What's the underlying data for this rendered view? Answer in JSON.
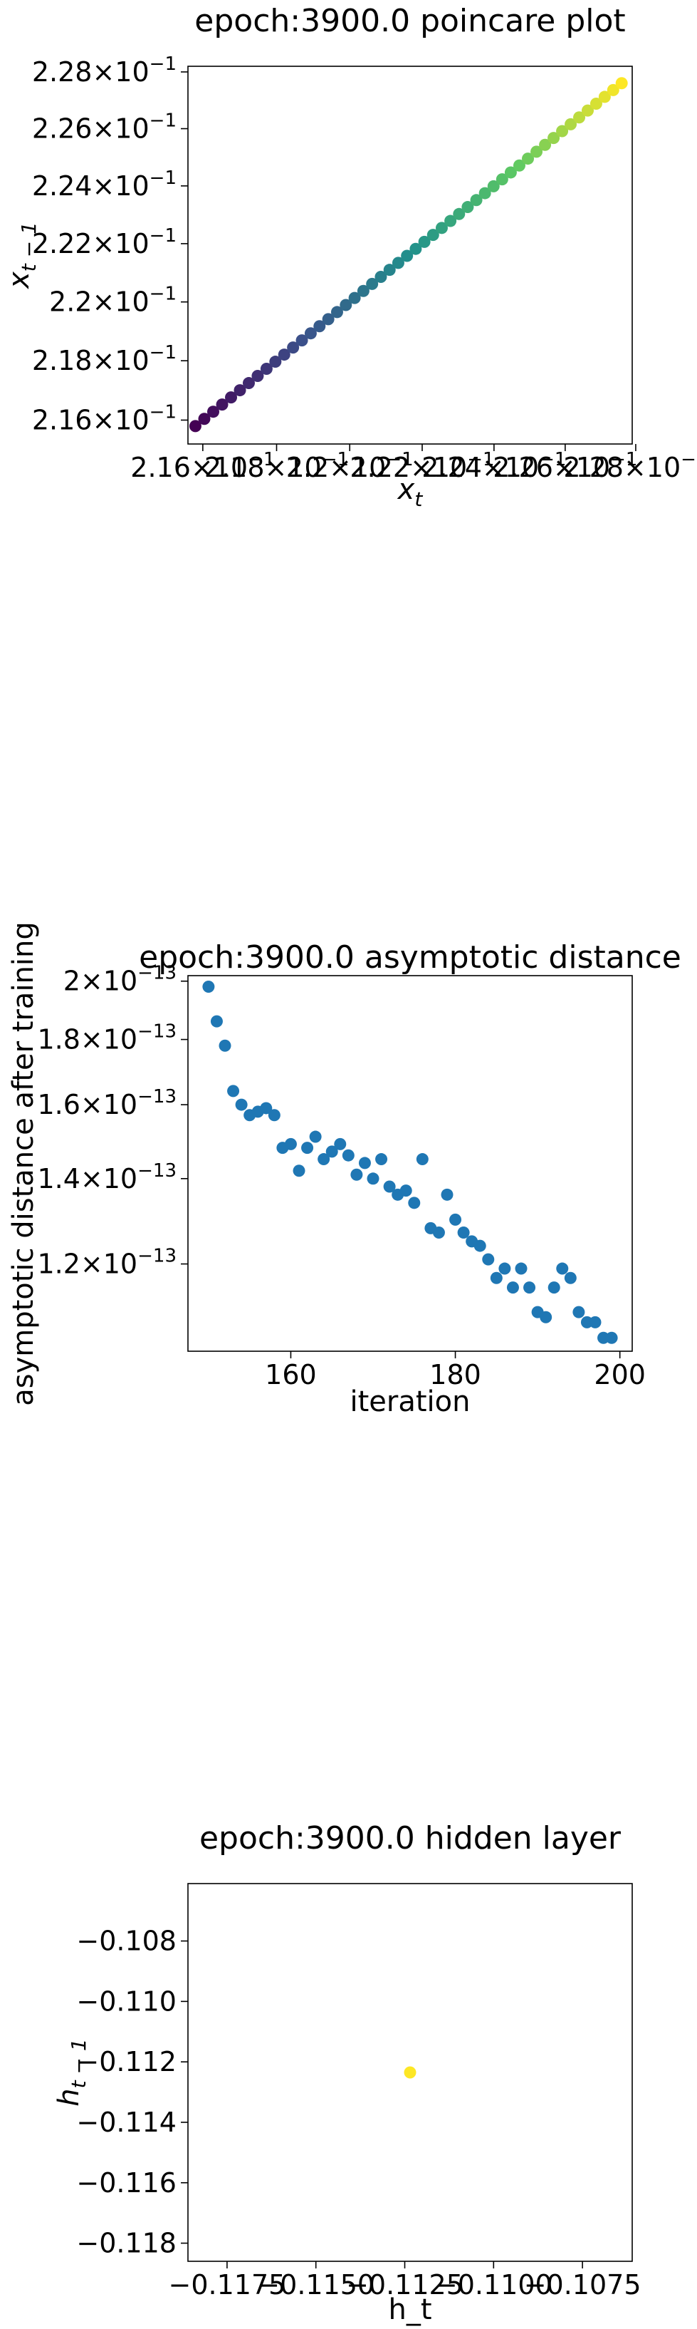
{
  "chart_data": [
    {
      "type": "scatter",
      "title": "epoch:3900.0 poincare plot",
      "xlabel": "x_t",
      "ylabel": "x_{t-1}",
      "xscale": "log",
      "yscale": "log",
      "xlim": [
        0.2156,
        0.2279
      ],
      "ylim": [
        0.2152,
        0.2282
      ],
      "grid": false,
      "legend": "none",
      "colormap": "viridis",
      "xticks": [
        {
          "value": 0.216,
          "base": "2.16",
          "exp": "−1"
        },
        {
          "value": 0.218,
          "base": "2.18",
          "exp": "−1"
        },
        {
          "value": 0.22,
          "base": "2.2",
          "exp": "−1"
        },
        {
          "value": 0.222,
          "base": "2.22",
          "exp": "−1"
        },
        {
          "value": 0.224,
          "base": "2.24",
          "exp": "−1"
        },
        {
          "value": 0.226,
          "base": "2.26",
          "exp": "−1"
        },
        {
          "value": 0.228,
          "base": "2.28",
          "exp": "−1"
        }
      ],
      "yticks": [
        {
          "value": 0.216,
          "base": "2.16",
          "exp": "−1"
        },
        {
          "value": 0.218,
          "base": "2.18",
          "exp": "−1"
        },
        {
          "value": 0.22,
          "base": "2.2",
          "exp": "−1"
        },
        {
          "value": 0.222,
          "base": "2.22",
          "exp": "−1"
        },
        {
          "value": 0.224,
          "base": "2.24",
          "exp": "−1"
        },
        {
          "value": 0.226,
          "base": "2.26",
          "exp": "−1"
        },
        {
          "value": 0.228,
          "base": "2.28",
          "exp": "−1"
        }
      ],
      "x_start": 0.2158,
      "x_end": 0.2276,
      "n_points": 50
    },
    {
      "type": "scatter",
      "title": "epoch:3900.0 asymptotic distance",
      "xlabel": "iteration",
      "ylabel": "asymptotic distance after training",
      "yscale": "log",
      "xlim": [
        147.5,
        201.5
      ],
      "ylim": [
        1.025e-13,
        2.02e-13
      ],
      "grid": false,
      "legend": "none",
      "color": "#1f77b4",
      "xticks": [
        {
          "value": 160,
          "label": "160"
        },
        {
          "value": 180,
          "label": "180"
        },
        {
          "value": 200,
          "label": "200"
        }
      ],
      "yticks": [
        {
          "value": 2e-13,
          "base": "2",
          "exp": "−13"
        },
        {
          "value": 1.8e-13,
          "base": "1.8",
          "exp": "−13"
        },
        {
          "value": 1.6e-13,
          "base": "1.6",
          "exp": "−13"
        },
        {
          "value": 1.4e-13,
          "base": "1.4",
          "exp": "−13"
        },
        {
          "value": 1.2e-13,
          "base": "1.2",
          "exp": "−13"
        }
      ],
      "x": [
        150,
        151,
        152,
        153,
        154,
        155,
        156,
        157,
        158,
        159,
        160,
        161,
        162,
        163,
        164,
        165,
        166,
        167,
        168,
        169,
        170,
        171,
        172,
        173,
        174,
        175,
        176,
        177,
        178,
        179,
        180,
        181,
        182,
        183,
        184,
        185,
        186,
        187,
        188,
        189,
        190,
        191,
        192,
        193,
        194,
        195,
        196,
        197,
        198,
        199
      ],
      "y": [
        1.98e-13,
        1.86e-13,
        1.78e-13,
        1.64e-13,
        1.6e-13,
        1.57e-13,
        1.58e-13,
        1.59e-13,
        1.57e-13,
        1.48e-13,
        1.49e-13,
        1.42e-13,
        1.48e-13,
        1.51e-13,
        1.45e-13,
        1.47e-13,
        1.49e-13,
        1.46e-13,
        1.41e-13,
        1.44e-13,
        1.4e-13,
        1.45e-13,
        1.38e-13,
        1.36e-13,
        1.37e-13,
        1.34e-13,
        1.45e-13,
        1.28e-13,
        1.27e-13,
        1.36e-13,
        1.3e-13,
        1.27e-13,
        1.25e-13,
        1.24e-13,
        1.21e-13,
        1.17e-13,
        1.19e-13,
        1.15e-13,
        1.19e-13,
        1.15e-13,
        1.1e-13,
        1.09e-13,
        1.15e-13,
        1.19e-13,
        1.17e-13,
        1.1e-13,
        1.08e-13,
        1.08e-13,
        1.05e-13,
        1.05e-13
      ]
    },
    {
      "type": "scatter",
      "title": "epoch:3900.0 hidden layer",
      "xlabel": "h_t",
      "ylabel": "h_{t-1}",
      "xlim": [
        -0.1186,
        -0.1061
      ],
      "ylim": [
        -0.1186,
        -0.1061
      ],
      "grid": false,
      "legend": "none",
      "color": "#fde725",
      "xticks": [
        {
          "value": -0.1175,
          "label": "−0.1175"
        },
        {
          "value": -0.115,
          "label": "−0.1150"
        },
        {
          "value": -0.1125,
          "label": "−0.1125"
        },
        {
          "value": -0.11,
          "label": "−0.1100"
        },
        {
          "value": -0.1075,
          "label": "−0.1075"
        }
      ],
      "yticks": [
        {
          "value": -0.108,
          "label": "−0.108"
        },
        {
          "value": -0.11,
          "label": "−0.110"
        },
        {
          "value": -0.112,
          "label": "−0.112"
        },
        {
          "value": -0.114,
          "label": "−0.114"
        },
        {
          "value": -0.116,
          "label": "−0.116"
        },
        {
          "value": -0.118,
          "label": "−0.118"
        }
      ],
      "x": [
        -0.11235
      ],
      "y": [
        -0.11235
      ]
    }
  ]
}
